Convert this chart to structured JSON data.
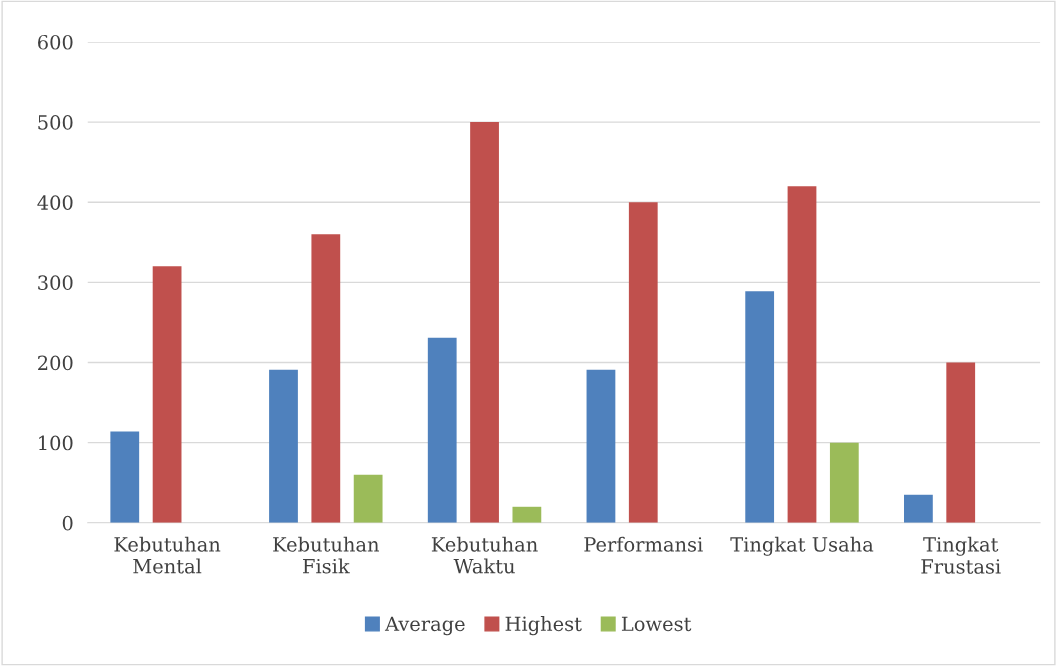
{
  "chart_data": {
    "type": "bar",
    "categories": [
      "Kebutuhan\nMental",
      "Kebutuhan\nFisik",
      "Kebutuhan\nWaktu",
      "Performansi",
      "Tingkat Usaha",
      "Tingkat\nFrustasi"
    ],
    "series": [
      {
        "name": "Average",
        "color": "#4f81bd",
        "values": [
          114,
          191,
          231,
          191,
          289,
          35
        ]
      },
      {
        "name": "Highest",
        "color": "#c0504d",
        "values": [
          320,
          360,
          500,
          400,
          420,
          200
        ]
      },
      {
        "name": "Lowest",
        "color": "#9bbb59",
        "values": [
          0,
          60,
          20,
          0,
          100,
          0
        ]
      }
    ],
    "ylim": [
      0,
      600
    ],
    "yticks": [
      0,
      100,
      200,
      300,
      400,
      500,
      600
    ],
    "grid": "y",
    "legend": "bottom"
  }
}
